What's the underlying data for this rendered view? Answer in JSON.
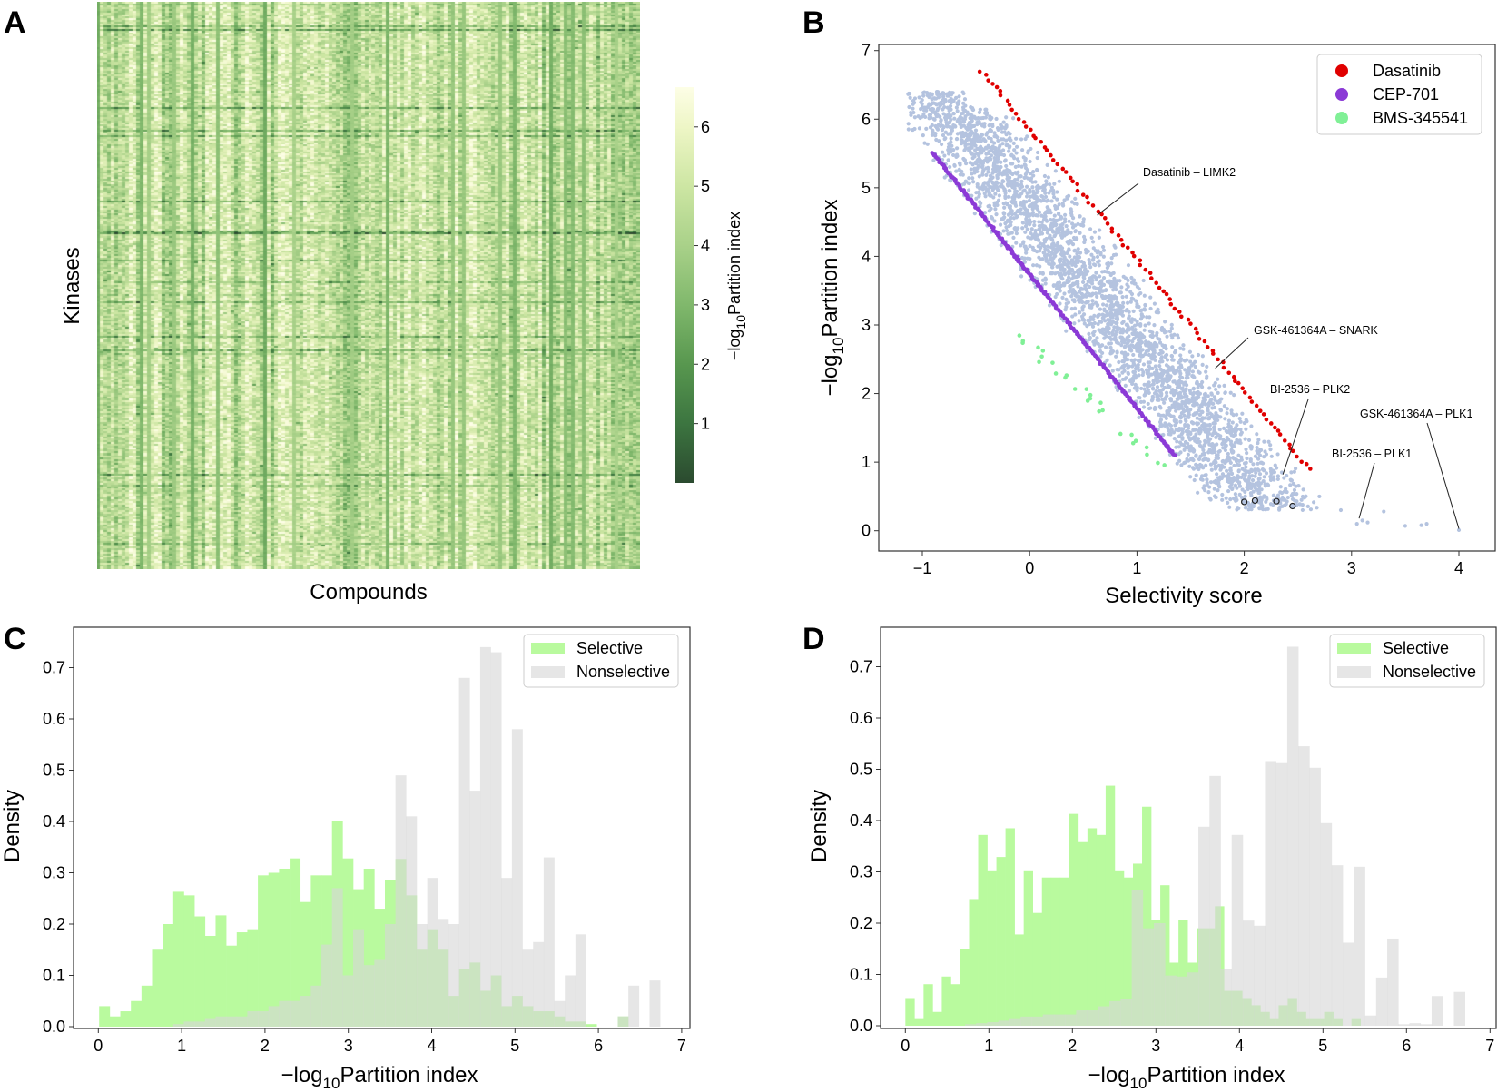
{
  "panels": {
    "a": "A",
    "b": "B",
    "c": "C",
    "d": "D"
  },
  "chart_data": [
    {
      "panel": "A",
      "type": "heatmap",
      "xlabel": "Compounds",
      "ylabel": "Kinases",
      "colorbar": {
        "label_prefix": "−log",
        "label_sub": "10",
        "label_main": "Partition index",
        "range": [
          0,
          6.67
        ],
        "ticks": [
          1,
          2,
          3,
          4,
          5,
          6
        ],
        "tick_labels": [
          "1",
          "2",
          "3",
          "4",
          "5",
          "6"
        ],
        "colormap": [
          {
            "v": 0,
            "c": "#2b4a2f"
          },
          {
            "v": 1,
            "c": "#3c7540"
          },
          {
            "v": 2,
            "c": "#58974f"
          },
          {
            "v": 3,
            "c": "#80b86c"
          },
          {
            "v": 4,
            "c": "#a9d189"
          },
          {
            "v": 5,
            "c": "#cde6a3"
          },
          {
            "v": 6,
            "c": "#eef6c6"
          },
          {
            "v": 6.67,
            "c": "#fdfee6"
          }
        ]
      },
      "grid": {
        "rows": 310,
        "cols": 150
      }
    },
    {
      "panel": "B",
      "type": "scatter",
      "xlabel": "Selectivity score",
      "ylabel_prefix": "−log",
      "ylabel_sub": "10",
      "ylabel_main": "Partition index",
      "xlim": [
        -1.43,
        4.33
      ],
      "ylim": [
        -0.3,
        7.3
      ],
      "xticks": [
        -1,
        0,
        1,
        2,
        3,
        4
      ],
      "xtick_labels": [
        "−1",
        "0",
        "1",
        "2",
        "3",
        "4"
      ],
      "yticks": [
        0,
        1,
        2,
        3,
        4,
        5,
        6,
        7
      ],
      "ytick_labels": [
        "0",
        "1",
        "2",
        "3",
        "4",
        "5",
        "6",
        "7"
      ],
      "legend_position": "top-right",
      "series": [
        {
          "name": "Dasatinib",
          "color": "#e00000",
          "from": [
            -0.45,
            6.7
          ],
          "to": [
            2.6,
            0.9
          ],
          "n": 95,
          "jitter": 0.04
        },
        {
          "name": "CEP-701",
          "color": "#8b3ad6",
          "from": [
            -0.9,
            5.5
          ],
          "to": [
            1.35,
            1.1
          ],
          "n": 260,
          "jitter": 0.02
        },
        {
          "name": "BMS-345541",
          "color": "#80f096",
          "from": [
            -0.1,
            2.85
          ],
          "to": [
            1.25,
            0.95
          ],
          "n": 34,
          "jitter": 0.12
        }
      ],
      "other_points": {
        "color": "#b4c3df",
        "count": 3200,
        "slope": -1.95,
        "intercept_range": [
          3.55,
          5.75
        ],
        "x_range": [
          -1.15,
          2.9
        ],
        "y_range": [
          0.3,
          6.4
        ],
        "extra": [
          [
            2.9,
            0.3
          ],
          [
            3.05,
            0.1
          ],
          [
            3.1,
            0.15
          ],
          [
            3.15,
            0.12
          ],
          [
            3.3,
            0.28
          ],
          [
            3.5,
            0.07
          ],
          [
            3.7,
            0.1
          ],
          [
            3.65,
            0.08
          ],
          [
            4.0,
            0.01
          ],
          [
            2.7,
            0.5
          ],
          [
            2.55,
            0.6
          ],
          [
            2.35,
            0.85
          ]
        ]
      },
      "highlighted_points": [
        [
          2.0,
          0.42
        ],
        [
          2.1,
          0.44
        ],
        [
          2.3,
          0.43
        ],
        [
          2.45,
          0.36
        ]
      ],
      "annotations": [
        {
          "text": "Dasatinib – LIMK2",
          "point": [
            0.63,
            4.6
          ]
        },
        {
          "text": "GSK-461364A – SNARK",
          "point": [
            1.73,
            2.37
          ]
        },
        {
          "text": "BI-2536 – PLK2",
          "point": [
            2.36,
            0.82
          ]
        },
        {
          "text": "GSK-461364A – PLK1",
          "point": [
            4.0,
            0.03
          ]
        },
        {
          "text": "BI-2536 – PLK1",
          "point": [
            3.07,
            0.18
          ]
        }
      ]
    },
    {
      "panel": "C",
      "type": "bar",
      "xlabel_prefix": "−log",
      "xlabel_sub": "10",
      "xlabel_main": "Partition index",
      "ylabel": "Density",
      "xlim": [
        -0.3,
        7.1
      ],
      "ylim": [
        0,
        0.79
      ],
      "xticks": [
        0,
        1,
        2,
        3,
        4,
        5,
        6,
        7
      ],
      "xtick_labels": [
        "0",
        "1",
        "2",
        "3",
        "4",
        "5",
        "6",
        "7"
      ],
      "yticks": [
        0,
        0.1,
        0.2,
        0.3,
        0.4,
        0.5,
        0.6,
        0.7
      ],
      "ytick_labels": [
        "0.0",
        "0.1",
        "0.2",
        "0.3",
        "0.4",
        "0.5",
        "0.6",
        "0.7"
      ],
      "legend_position": "top-right",
      "series": [
        {
          "name": "Selective",
          "color": "#b9fa9e",
          "bin_start": 0.01,
          "bin_width": 0.127,
          "values": [
            0.04,
            0.02,
            0.03,
            0.05,
            0.08,
            0.15,
            0.2,
            0.263,
            0.256,
            0.215,
            0.177,
            0.217,
            0.158,
            0.184,
            0.19,
            0.295,
            0.3,
            0.308,
            0.328,
            0.243,
            0.295,
            0.295,
            0.4,
            0.328,
            0.268,
            0.308,
            0.23,
            0.285,
            0.327,
            0.256,
            0.15,
            0.19,
            0.15,
            0.06,
            0.113,
            0.125,
            0.07,
            0.1,
            0.04,
            0.06,
            0.04,
            0.03,
            0.03,
            0.02,
            0.01,
            0.01,
            0.005,
            0,
            0,
            0.02,
            0,
            0,
            0
          ]
        },
        {
          "name": "Nonselective",
          "color": "#d6d6d6",
          "bin_start": 0.01,
          "bin_width": 0.127,
          "values": [
            0,
            0,
            0,
            0,
            0,
            0,
            0,
            0.005,
            0.01,
            0.01,
            0.015,
            0.02,
            0.02,
            0.02,
            0.03,
            0.03,
            0.04,
            0.05,
            0.05,
            0.06,
            0.08,
            0.16,
            0.27,
            0.1,
            0.19,
            0.12,
            0.13,
            0.2,
            0.49,
            0.41,
            0.2,
            0.29,
            0.21,
            0.2,
            0.68,
            0.46,
            0.74,
            0.73,
            0.29,
            0.58,
            0.15,
            0.165,
            0.33,
            0.05,
            0.1,
            0.18,
            0,
            0,
            0,
            0.02,
            0.08,
            0,
            0.09
          ]
        }
      ]
    },
    {
      "panel": "D",
      "type": "bar",
      "xlabel_prefix": "−log",
      "xlabel_sub": "10",
      "xlabel_main": "Partition index",
      "ylabel": "Density",
      "xlim": [
        -0.3,
        7.1
      ],
      "ylim": [
        0,
        0.79
      ],
      "xticks": [
        0,
        1,
        2,
        3,
        4,
        5,
        6,
        7
      ],
      "xtick_labels": [
        "0",
        "1",
        "2",
        "3",
        "4",
        "5",
        "6",
        "7"
      ],
      "yticks": [
        0,
        0.1,
        0.2,
        0.3,
        0.4,
        0.5,
        0.6,
        0.7
      ],
      "ytick_labels": [
        "0.0",
        "0.1",
        "0.2",
        "0.3",
        "0.4",
        "0.5",
        "0.6",
        "0.7"
      ],
      "legend_position": "top-right",
      "series": [
        {
          "name": "Selective",
          "color": "#b9fa9e",
          "bin_start": 0.0,
          "bin_width": 0.109,
          "values": [
            0.054,
            0.013,
            0.081,
            0.027,
            0.096,
            0.081,
            0.15,
            0.247,
            0.372,
            0.303,
            0.329,
            0.385,
            0.178,
            0.303,
            0.22,
            0.289,
            0.289,
            0.289,
            0.413,
            0.358,
            0.385,
            0.372,
            0.468,
            0.303,
            0.289,
            0.316,
            0.427,
            0.206,
            0.274,
            0.123,
            0.206,
            0.123,
            0.19,
            0.19,
            0.233,
            0.068,
            0.068,
            0.054,
            0.04,
            0.027,
            0.013,
            0.04,
            0.054,
            0.027,
            0.013,
            0.013,
            0.027,
            0.013,
            0,
            0.013
          ]
        },
        {
          "name": "Nonselective",
          "color": "#d6d6d6",
          "bin_start": 0.05,
          "bin_width": 0.133,
          "values": [
            0,
            0,
            0,
            0,
            0,
            0.003,
            0.005,
            0.007,
            0.01,
            0.013,
            0.018,
            0.018,
            0.022,
            0.022,
            0.022,
            0.03,
            0.03,
            0.038,
            0.048,
            0.053,
            0.265,
            0.19,
            0.2,
            0.098,
            0.096,
            0.104,
            0.388,
            0.487,
            0.111,
            0.372,
            0.205,
            0.195,
            0.516,
            0.512,
            0.739,
            0.545,
            0.503,
            0.395,
            0.313,
            0.162,
            0.31,
            0.02,
            0.094,
            0.17,
            0.003,
            0.005,
            0.003,
            0.058,
            0,
            0.066
          ]
        }
      ]
    }
  ]
}
